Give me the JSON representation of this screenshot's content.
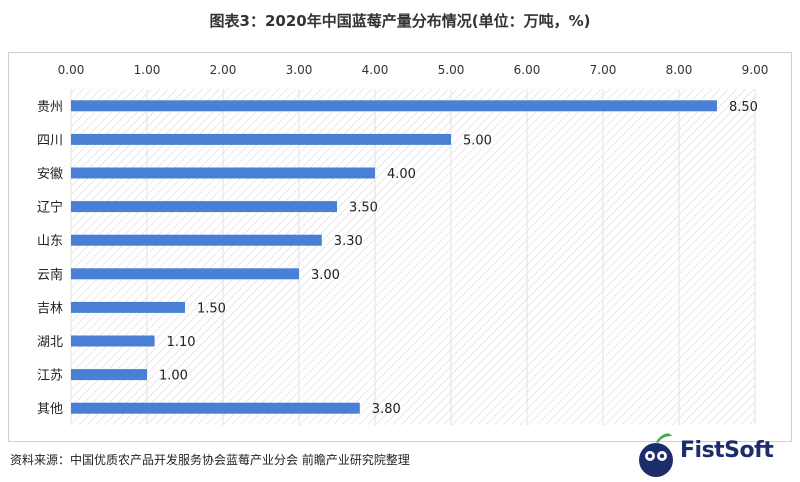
{
  "title": "图表3：2020年中国蓝莓产量分布情况(单位：万吨，%)",
  "source": "资料来源：中国优质农产品开发服务协会蓝莓产业分会 前瞻产业研究院整理",
  "logo_text": "FistSoft",
  "colors": {
    "bar": "#4a7fd6",
    "grid": "#e2e2e2",
    "hatch": "#d4d4d4"
  },
  "chart_data": {
    "type": "bar",
    "orientation": "horizontal",
    "categories": [
      "贵州",
      "四川",
      "安徽",
      "辽宁",
      "山东",
      "云南",
      "吉林",
      "湖北",
      "江苏",
      "其他"
    ],
    "values": [
      8.5,
      5.0,
      4.0,
      3.5,
      3.3,
      3.0,
      1.5,
      1.1,
      1.0,
      3.8
    ],
    "value_labels": [
      "8.50",
      "5.00",
      "4.00",
      "3.50",
      "3.30",
      "3.00",
      "1.50",
      "1.10",
      "1.00",
      "3.80"
    ],
    "x_ticks": [
      "0.00",
      "1.00",
      "2.00",
      "3.00",
      "4.00",
      "5.00",
      "6.00",
      "7.00",
      "8.00",
      "9.00"
    ],
    "xlim": [
      0,
      9
    ],
    "axis_position": "top",
    "grid": true
  }
}
